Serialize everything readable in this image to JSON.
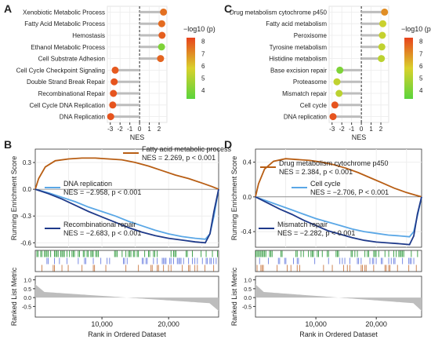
{
  "chart_data": [
    {
      "panel": "A",
      "type": "scatter",
      "subtype": "lollipop",
      "xlabel": "NES",
      "xlim": [
        -3.3,
        2.8
      ],
      "xticks": [
        "-3",
        "-2",
        "-1",
        "0",
        "1",
        "2"
      ],
      "colorbar": {
        "title": "−log10 (p)",
        "ticks": [
          "8",
          "7",
          "6",
          "5",
          "4"
        ],
        "range": [
          3.3,
          8.3
        ],
        "low_color": "#5ad43c",
        "mid_color": "#d9d12c",
        "high_color": "#e8431c"
      },
      "categories": [
        "Xenobiotic Metabolic Process",
        "Fatty Acid Metabolic Process",
        "Hemostasis",
        "Ethanol Metabolic Process",
        "Cell Substrate Adhesion",
        "Cell Cycle Checkpoint Signaling",
        "Double Strand Break Repair",
        "Recombinational Repair",
        "Cell Cycle DNA Replication",
        "DNA Replication"
      ],
      "values": [
        2.45,
        2.27,
        2.3,
        2.25,
        2.15,
        -2.5,
        -2.6,
        -2.68,
        -2.75,
        -2.96
      ],
      "logp": [
        7.5,
        7.6,
        7.8,
        4.0,
        7.7,
        7.9,
        8.0,
        8.0,
        8.0,
        8.0
      ]
    },
    {
      "panel": "C",
      "type": "scatter",
      "subtype": "lollipop",
      "xlabel": "NES",
      "xlim": [
        -3.3,
        2.8
      ],
      "xticks": [
        "-3",
        "-2",
        "-1",
        "0",
        "1",
        "2"
      ],
      "colorbar": {
        "title": "−log10 (p)",
        "ticks": [
          "8",
          "7",
          "6",
          "5",
          "4"
        ],
        "range": [
          3.3,
          8.3
        ],
        "low_color": "#5ad43c",
        "mid_color": "#d9d12c",
        "high_color": "#e8431c"
      },
      "categories": [
        "Drug metabolism cytochrome p450",
        "Fatty acid metabolism",
        "Peroxisome",
        "Tyrosine metabolism",
        "Histidine metabolism",
        "Base excision repair",
        "Proteasome",
        "Mismatch repair",
        "Cell cycle",
        "DNA replication"
      ],
      "values": [
        2.38,
        2.2,
        2.15,
        2.1,
        2.05,
        -2.2,
        -2.5,
        -2.28,
        -2.71,
        -2.9
      ],
      "logp": [
        7.0,
        5.5,
        5.4,
        5.3,
        5.2,
        4.0,
        5.3,
        5.2,
        8.0,
        8.0
      ]
    },
    {
      "panel": "B",
      "type": "line",
      "subtype": "gsea",
      "ylabel": "Running Enrichment Score",
      "ylabel2": "Ranked List Metric",
      "xlabel": "Rank in Ordered Dataset",
      "xlim": [
        0,
        27500
      ],
      "ylim": [
        -0.65,
        0.45
      ],
      "yticks": [
        "0.3",
        "0.0",
        "-0.3",
        "-0.6"
      ],
      "xticks": [
        "10,000",
        "20,000"
      ],
      "metric_ticks": [
        "1.0",
        "0.5",
        "0.0",
        "-0.5"
      ],
      "metric_ylim": [
        -1.1,
        1.2
      ],
      "series": [
        {
          "color": "#b85e14",
          "label": "Fatty acid metabolic process",
          "stats": "NES = 2.269, p < 0.001",
          "x": [
            0,
            500,
            1500,
            3000,
            5000,
            7000,
            9000,
            11000,
            13000,
            15000,
            17000,
            19000,
            21000,
            23000,
            25000,
            26500,
            27500
          ],
          "y": [
            0.0,
            0.12,
            0.25,
            0.32,
            0.34,
            0.35,
            0.35,
            0.34,
            0.33,
            0.3,
            0.26,
            0.21,
            0.16,
            0.12,
            0.07,
            0.03,
            0.0
          ]
        },
        {
          "color": "#5aa7e6",
          "label": "DNA replication",
          "stats": "NES = −2.958, p < 0.001",
          "x": [
            0,
            2000,
            4000,
            6000,
            8000,
            10000,
            12000,
            14000,
            16000,
            18000,
            20000,
            22000,
            24000,
            25500,
            26200,
            26800,
            27500
          ],
          "y": [
            0.0,
            -0.04,
            -0.09,
            -0.14,
            -0.2,
            -0.25,
            -0.3,
            -0.36,
            -0.41,
            -0.46,
            -0.5,
            -0.53,
            -0.55,
            -0.56,
            -0.5,
            -0.3,
            0.0
          ]
        },
        {
          "color": "#1f3a8a",
          "label": "Recombinational repair",
          "stats": "NES = −2.683, p < 0.001",
          "x": [
            0,
            2000,
            4000,
            6000,
            8000,
            10000,
            12000,
            14000,
            16000,
            18000,
            20000,
            22000,
            24000,
            25500,
            26200,
            26800,
            27500
          ],
          "y": [
            0.0,
            -0.05,
            -0.11,
            -0.18,
            -0.25,
            -0.31,
            -0.37,
            -0.43,
            -0.48,
            -0.52,
            -0.55,
            -0.57,
            -0.59,
            -0.6,
            -0.5,
            -0.25,
            0.0
          ]
        }
      ]
    },
    {
      "panel": "D",
      "type": "line",
      "subtype": "gsea",
      "ylabel": "Running Enrichment Score",
      "ylabel2": "Ranked List Metric",
      "xlabel": "Rank in Ordered Dataset",
      "xlim": [
        0,
        27500
      ],
      "ylim": [
        -0.58,
        0.55
      ],
      "yticks": [
        "0.4",
        "0.0",
        "-0.4"
      ],
      "xticks": [
        "10,000",
        "20,000"
      ],
      "metric_ticks": [
        "1.0",
        "0.5",
        "0.0",
        "-0.5"
      ],
      "metric_ylim": [
        -1.1,
        1.2
      ],
      "series": [
        {
          "color": "#b85e14",
          "label": "Drug metabolism cytochrome p450",
          "stats": "NES = 2.384, p < 0.001",
          "x": [
            0,
            500,
            1500,
            3000,
            5000,
            7000,
            9000,
            11000,
            13000,
            15000,
            17000,
            19000,
            21000,
            23000,
            25000,
            26500,
            27500
          ],
          "y": [
            0.0,
            0.15,
            0.32,
            0.41,
            0.44,
            0.43,
            0.42,
            0.4,
            0.37,
            0.33,
            0.28,
            0.22,
            0.16,
            0.1,
            0.05,
            0.02,
            0.0
          ]
        },
        {
          "color": "#5aa7e6",
          "label": "Cell cycle",
          "stats": "NES = −2.706, P < 0.001",
          "x": [
            0,
            2000,
            4000,
            6000,
            8000,
            10000,
            12000,
            14000,
            16000,
            18000,
            20000,
            22000,
            24000,
            25500,
            26200,
            26800,
            27500
          ],
          "y": [
            0.0,
            -0.05,
            -0.1,
            -0.15,
            -0.2,
            -0.25,
            -0.29,
            -0.33,
            -0.37,
            -0.4,
            -0.42,
            -0.44,
            -0.45,
            -0.46,
            -0.4,
            -0.22,
            0.0
          ]
        },
        {
          "color": "#1f3a8a",
          "label": "Mismatch repair",
          "stats": "NES = −2.282, p < 0.001",
          "x": [
            0,
            2000,
            4000,
            6000,
            8000,
            10000,
            12000,
            14000,
            16000,
            18000,
            20000,
            22000,
            24000,
            25500,
            26200,
            26800,
            27500
          ],
          "y": [
            0.0,
            -0.07,
            -0.14,
            -0.2,
            -0.27,
            -0.33,
            -0.39,
            -0.43,
            -0.47,
            -0.5,
            -0.52,
            -0.53,
            -0.54,
            -0.55,
            -0.45,
            -0.2,
            0.0
          ]
        }
      ]
    }
  ]
}
